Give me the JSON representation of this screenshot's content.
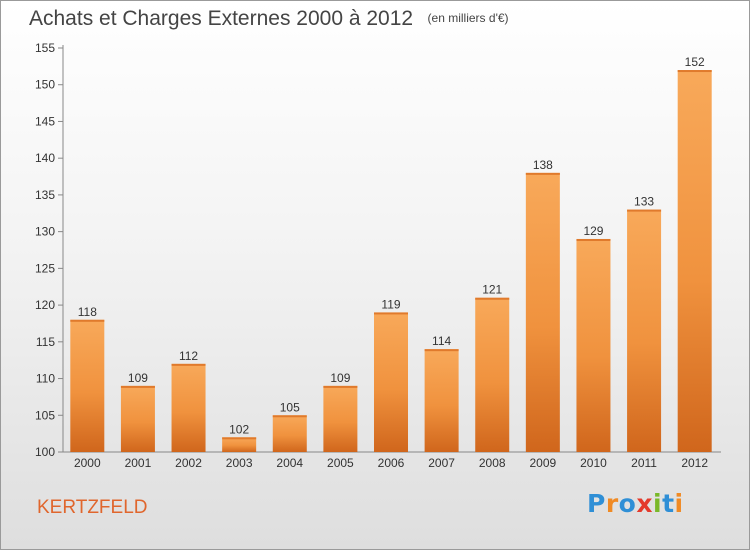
{
  "chart_data": {
    "type": "bar",
    "title": "Achats et Charges Externes 2000 à 2012",
    "subtitle": "(en milliers d'€)",
    "categories": [
      "2000",
      "2001",
      "2002",
      "2003",
      "2004",
      "2005",
      "2006",
      "2007",
      "2008",
      "2009",
      "2010",
      "2011",
      "2012"
    ],
    "values": [
      118,
      109,
      112,
      102,
      105,
      109,
      119,
      114,
      121,
      138,
      129,
      133,
      152
    ],
    "ylim": [
      100,
      155
    ],
    "yticks": [
      100,
      105,
      110,
      115,
      120,
      125,
      130,
      135,
      140,
      145,
      150,
      155
    ],
    "grid": false,
    "bar_color": "#f0923e",
    "bar_color_light": "#f8a95a",
    "bar_color_dark": "#d0661c"
  },
  "footer": {
    "place": "KERTZFELD",
    "logo": "Proxiti",
    "logo_colors": [
      "#2f8fd6",
      "#f08a24",
      "#2f8fd6",
      "#e43a2c",
      "#7ab829",
      "#2f8fd6",
      "#f08a24"
    ]
  }
}
